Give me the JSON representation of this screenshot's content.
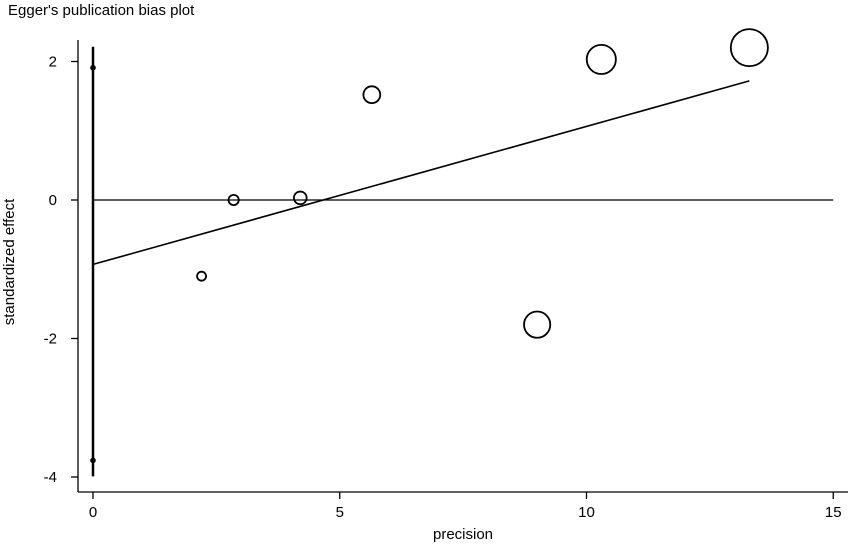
{
  "chart_data": {
    "type": "scatter",
    "title": "Egger's publication bias plot",
    "xlabel": "precision",
    "ylabel": "standardized effect",
    "xlim": [
      0,
      15
    ],
    "ylim": [
      -4,
      2.2
    ],
    "x_ticks": [
      0,
      5,
      10,
      15
    ],
    "y_ticks": [
      2,
      0,
      -2,
      -4
    ],
    "x_tick_labels": [
      "0",
      "5",
      "10",
      "15"
    ],
    "y_tick_labels": [
      "2",
      "0",
      "-2",
      "-4"
    ],
    "grid": false,
    "legend": "none",
    "points": [
      {
        "x": 2.2,
        "y": -1.1,
        "weight": 1
      },
      {
        "x": 2.85,
        "y": 0.0,
        "weight": 1.3
      },
      {
        "x": 4.2,
        "y": 0.03,
        "weight": 2
      },
      {
        "x": 5.65,
        "y": 1.52,
        "weight": 3.5
      },
      {
        "x": 9.0,
        "y": -1.8,
        "weight": 8.5
      },
      {
        "x": 10.3,
        "y": 2.03,
        "weight": 10.5
      },
      {
        "x": 13.3,
        "y": 2.2,
        "weight": 17
      }
    ],
    "regression_line": {
      "x": [
        0,
        13.3
      ],
      "y": [
        -0.93,
        1.72
      ]
    },
    "intercept_ci": {
      "x": 0,
      "estimate": -0.93,
      "lower": -3.76,
      "upper": 1.91
    },
    "reference_line_y": 0
  }
}
